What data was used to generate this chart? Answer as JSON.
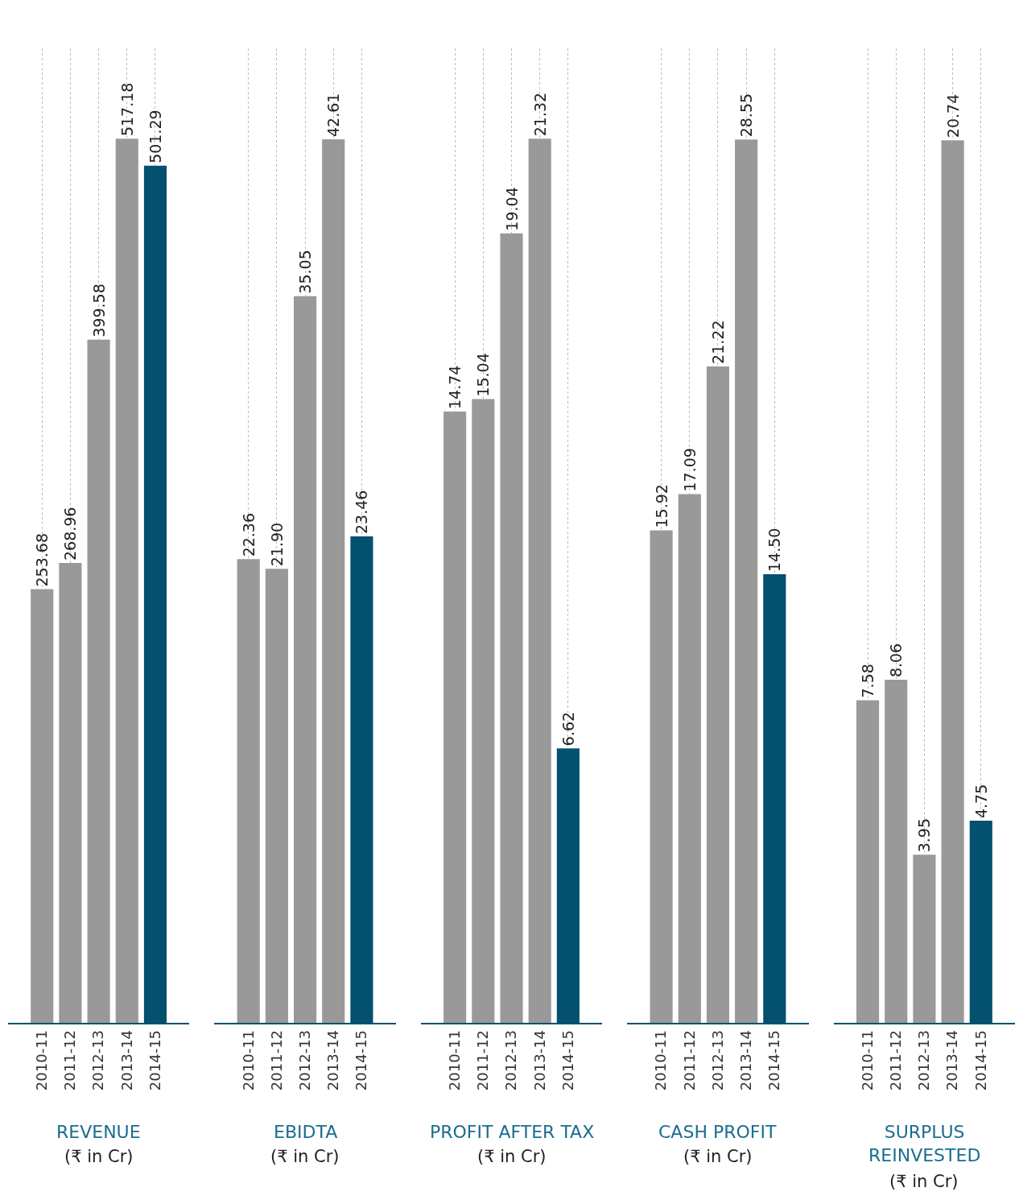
{
  "chart_data": [
    {
      "type": "bar",
      "title": "REVENUE",
      "subtitle": "(₹ in Cr)",
      "categories": [
        "2010-11",
        "2011-12",
        "2012-13",
        "2013-14",
        "2014-15"
      ],
      "values": [
        253.68,
        268.96,
        399.58,
        517.18,
        501.29
      ],
      "value_labels": [
        "253.68",
        "268.96",
        "399.58",
        "517.18",
        "501.29"
      ],
      "colors": [
        "#999999",
        "#999999",
        "#999999",
        "#999999",
        "#03506f"
      ],
      "ylim": [
        0,
        570
      ],
      "grid": "x",
      "tick_labels": "x"
    },
    {
      "type": "bar",
      "title": "EBIDTA",
      "subtitle": "(₹ in Cr)",
      "categories": [
        "2010-11",
        "2011-12",
        "2012-13",
        "2013-14",
        "2014-15"
      ],
      "values": [
        22.36,
        21.9,
        35.05,
        42.61,
        23.46
      ],
      "value_labels": [
        "22.36",
        "21.90",
        "35.05",
        "42.61",
        "23.46"
      ],
      "colors": [
        "#999999",
        "#999999",
        "#999999",
        "#999999",
        "#03506f"
      ],
      "ylim": [
        0,
        47
      ],
      "grid": "x",
      "tick_labels": "x"
    },
    {
      "type": "bar",
      "title": "PROFIT AFTER TAX",
      "subtitle": "(₹ in Cr)",
      "categories": [
        "2010-11",
        "2011-12",
        "2012-13",
        "2013-14",
        "2014-15"
      ],
      "values": [
        14.74,
        15.04,
        19.04,
        21.32,
        6.62
      ],
      "value_labels": [
        "14.74",
        "15.04",
        "19.04",
        "21.32",
        "6.62"
      ],
      "colors": [
        "#999999",
        "#999999",
        "#999999",
        "#999999",
        "#03506f"
      ],
      "ylim": [
        0,
        23.5
      ],
      "grid": "x",
      "tick_labels": "x"
    },
    {
      "type": "bar",
      "title": "CASH PROFIT",
      "subtitle": "(₹ in Cr)",
      "categories": [
        "2010-11",
        "2011-12",
        "2012-13",
        "2013-14",
        "2014-15"
      ],
      "values": [
        15.92,
        17.09,
        21.22,
        28.55,
        14.5
      ],
      "value_labels": [
        "15.92",
        "17.09",
        "21.22",
        "28.55",
        "14.50"
      ],
      "colors": [
        "#999999",
        "#999999",
        "#999999",
        "#999999",
        "#03506f"
      ],
      "ylim": [
        0,
        31.5
      ],
      "grid": "x",
      "tick_labels": "x"
    },
    {
      "type": "bar",
      "title": "SURPLUS REINVESTED",
      "subtitle": "(₹ in Cr)",
      "categories": [
        "2010-11",
        "2011-12",
        "2012-13",
        "2013-14",
        "2014-15"
      ],
      "values": [
        7.58,
        8.06,
        3.95,
        20.74,
        4.75
      ],
      "value_labels": [
        "7.58",
        "8.06",
        "3.95",
        "20.74",
        "4.75"
      ],
      "colors": [
        "#999999",
        "#999999",
        "#999999",
        "#999999",
        "#03506f"
      ],
      "ylim": [
        0,
        22.9
      ],
      "grid": "x",
      "tick_labels": "x"
    }
  ]
}
